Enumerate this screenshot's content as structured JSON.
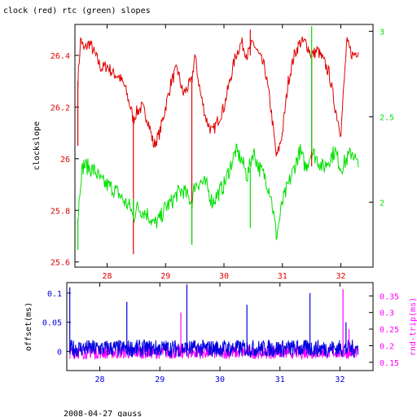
{
  "header": {
    "title": "clock (red) rtc (green) slopes"
  },
  "footer": {
    "caption": "2008-04-27 gauss"
  },
  "colors": {
    "clock": "#e00000",
    "rtc": "#00e000",
    "offset": "#0000e0",
    "rndtrip": "#ff00ff",
    "axis": "#000000"
  },
  "chart_data": [
    {
      "type": "line",
      "title": "clock (red) rtc (green) slopes",
      "xlabel": "",
      "ylabel": "clockslope",
      "y2label": "",
      "xlim": [
        27.45,
        32.55
      ],
      "ylim": [
        25.58,
        26.52
      ],
      "y2lim": [
        1.62,
        3.04
      ],
      "xticks": [
        "28",
        "29",
        "30",
        "31",
        "32"
      ],
      "xtick_values": [
        28,
        29,
        30,
        31,
        32
      ],
      "yticks": [
        "25.6",
        "25.8",
        "26",
        "26.2",
        "26.4"
      ],
      "ytick_values": [
        25.6,
        25.8,
        26.0,
        26.2,
        26.4
      ],
      "y2ticks": [
        "2",
        "2.5",
        "3"
      ],
      "y2tick_values": [
        2.0,
        2.5,
        3.0
      ],
      "series": [
        {
          "name": "clock",
          "axis": "left",
          "x": [
            27.5,
            27.55,
            27.6,
            27.7,
            27.8,
            27.9,
            28.0,
            28.1,
            28.2,
            28.3,
            28.4,
            28.45,
            28.5,
            28.6,
            28.7,
            28.8,
            28.9,
            29.0,
            29.1,
            29.2,
            29.3,
            29.45,
            29.5,
            29.6,
            29.7,
            29.8,
            29.9,
            30.0,
            30.1,
            30.2,
            30.3,
            30.4,
            30.5,
            30.6,
            30.7,
            30.8,
            30.9,
            31.0,
            31.1,
            31.2,
            31.3,
            31.4,
            31.5,
            31.6,
            31.7,
            31.8,
            31.9,
            32.0,
            32.1,
            32.2,
            32.3
          ],
          "y": [
            26.3,
            26.47,
            26.42,
            26.45,
            26.4,
            26.35,
            26.36,
            26.33,
            26.32,
            26.28,
            26.2,
            26.15,
            26.18,
            26.2,
            26.15,
            26.05,
            26.1,
            26.2,
            26.3,
            26.35,
            26.25,
            26.3,
            26.4,
            26.25,
            26.15,
            26.1,
            26.15,
            26.2,
            26.3,
            26.4,
            26.45,
            26.4,
            26.45,
            26.4,
            26.35,
            26.2,
            26.0,
            26.1,
            26.3,
            26.4,
            26.45,
            26.45,
            26.4,
            26.42,
            26.38,
            26.33,
            26.2,
            26.1,
            26.45,
            26.4,
            26.42
          ]
        },
        {
          "name": "rtc",
          "axis": "right",
          "x": [
            27.5,
            27.55,
            27.6,
            27.7,
            27.8,
            27.9,
            28.0,
            28.1,
            28.2,
            28.3,
            28.4,
            28.45,
            28.5,
            28.6,
            28.7,
            28.8,
            28.9,
            29.0,
            29.1,
            29.2,
            29.3,
            29.45,
            29.5,
            29.6,
            29.7,
            29.8,
            29.9,
            30.0,
            30.1,
            30.2,
            30.3,
            30.4,
            30.5,
            30.6,
            30.7,
            30.8,
            30.9,
            31.0,
            31.1,
            31.2,
            31.3,
            31.4,
            31.5,
            31.6,
            31.7,
            31.8,
            31.9,
            32.0,
            32.1,
            32.2,
            32.3
          ],
          "y": [
            1.9,
            2.15,
            2.22,
            2.2,
            2.18,
            2.12,
            2.1,
            2.08,
            2.05,
            2.0,
            1.97,
            1.9,
            1.97,
            1.95,
            1.93,
            1.87,
            1.9,
            1.97,
            2.0,
            2.05,
            2.07,
            2.0,
            2.1,
            2.12,
            2.1,
            2.0,
            2.05,
            2.1,
            2.2,
            2.3,
            2.25,
            2.15,
            2.3,
            2.2,
            2.15,
            2.05,
            1.8,
            2.0,
            2.1,
            2.2,
            2.3,
            2.2,
            2.3,
            2.25,
            2.2,
            2.25,
            2.3,
            2.2,
            2.25,
            2.3,
            2.2
          ]
        }
      ],
      "spikes": [
        {
          "series": "clock",
          "x": 27.5,
          "from": 26.3,
          "to": 26.05
        },
        {
          "series": "clock",
          "x": 28.45,
          "from": 26.15,
          "to": 25.63
        },
        {
          "series": "clock",
          "x": 29.45,
          "from": 26.3,
          "to": 25.67
        },
        {
          "series": "clock",
          "x": 30.45,
          "from": 26.4,
          "to": 26.5
        },
        {
          "series": "clock",
          "x": 31.5,
          "from": 26.4,
          "to": 25.97
        },
        {
          "series": "rtc",
          "x": 27.5,
          "from": 1.9,
          "to": 1.72
        },
        {
          "series": "rtc",
          "x": 28.45,
          "from": 1.9,
          "to": 2.02
        },
        {
          "series": "rtc",
          "x": 29.45,
          "from": 2.0,
          "to": 1.75
        },
        {
          "series": "rtc",
          "x": 30.45,
          "from": 2.2,
          "to": 1.85
        },
        {
          "series": "rtc",
          "x": 31.5,
          "from": 2.3,
          "to": 3.03
        }
      ]
    },
    {
      "type": "line",
      "title": "",
      "xlabel": "",
      "ylabel": "offset(ms)",
      "y2label": "rnd-trip(ms)",
      "xlim": [
        27.45,
        32.55
      ],
      "ylim": [
        -0.033,
        0.118
      ],
      "y2lim": [
        0.125,
        0.39
      ],
      "xticks": [
        "28",
        "29",
        "30",
        "31",
        "32"
      ],
      "xtick_values": [
        28,
        29,
        30,
        31,
        32
      ],
      "yticks": [
        "0",
        "0.05",
        "0.1"
      ],
      "ytick_values": [
        0,
        0.05,
        0.1
      ],
      "y2ticks": [
        "0.15",
        "0.2",
        "0.25",
        "0.3",
        "0.35"
      ],
      "y2tick_values": [
        0.15,
        0.2,
        0.25,
        0.3,
        0.35
      ],
      "series": [
        {
          "name": "offset",
          "axis": "left",
          "typical_range": [
            -0.01,
            0.02
          ]
        },
        {
          "name": "rnd-trip",
          "axis": "right",
          "typical_range": [
            0.16,
            0.2
          ]
        }
      ],
      "spikes": [
        {
          "series": "offset",
          "x": 27.5,
          "from": -0.005,
          "to": 0.11
        },
        {
          "series": "offset",
          "x": 28.45,
          "from": -0.005,
          "to": 0.085
        },
        {
          "series": "offset",
          "x": 29.45,
          "from": -0.005,
          "to": 0.115
        },
        {
          "series": "offset",
          "x": 30.45,
          "from": -0.005,
          "to": 0.08
        },
        {
          "series": "offset",
          "x": 31.5,
          "from": -0.005,
          "to": 0.1
        },
        {
          "series": "offset",
          "x": 32.1,
          "from": -0.005,
          "to": 0.05
        },
        {
          "series": "rnd-trip",
          "x": 29.35,
          "from": 0.17,
          "to": 0.3
        },
        {
          "series": "rnd-trip",
          "x": 32.05,
          "from": 0.17,
          "to": 0.37
        },
        {
          "series": "rnd-trip",
          "x": 32.15,
          "from": 0.17,
          "to": 0.25
        }
      ]
    }
  ]
}
